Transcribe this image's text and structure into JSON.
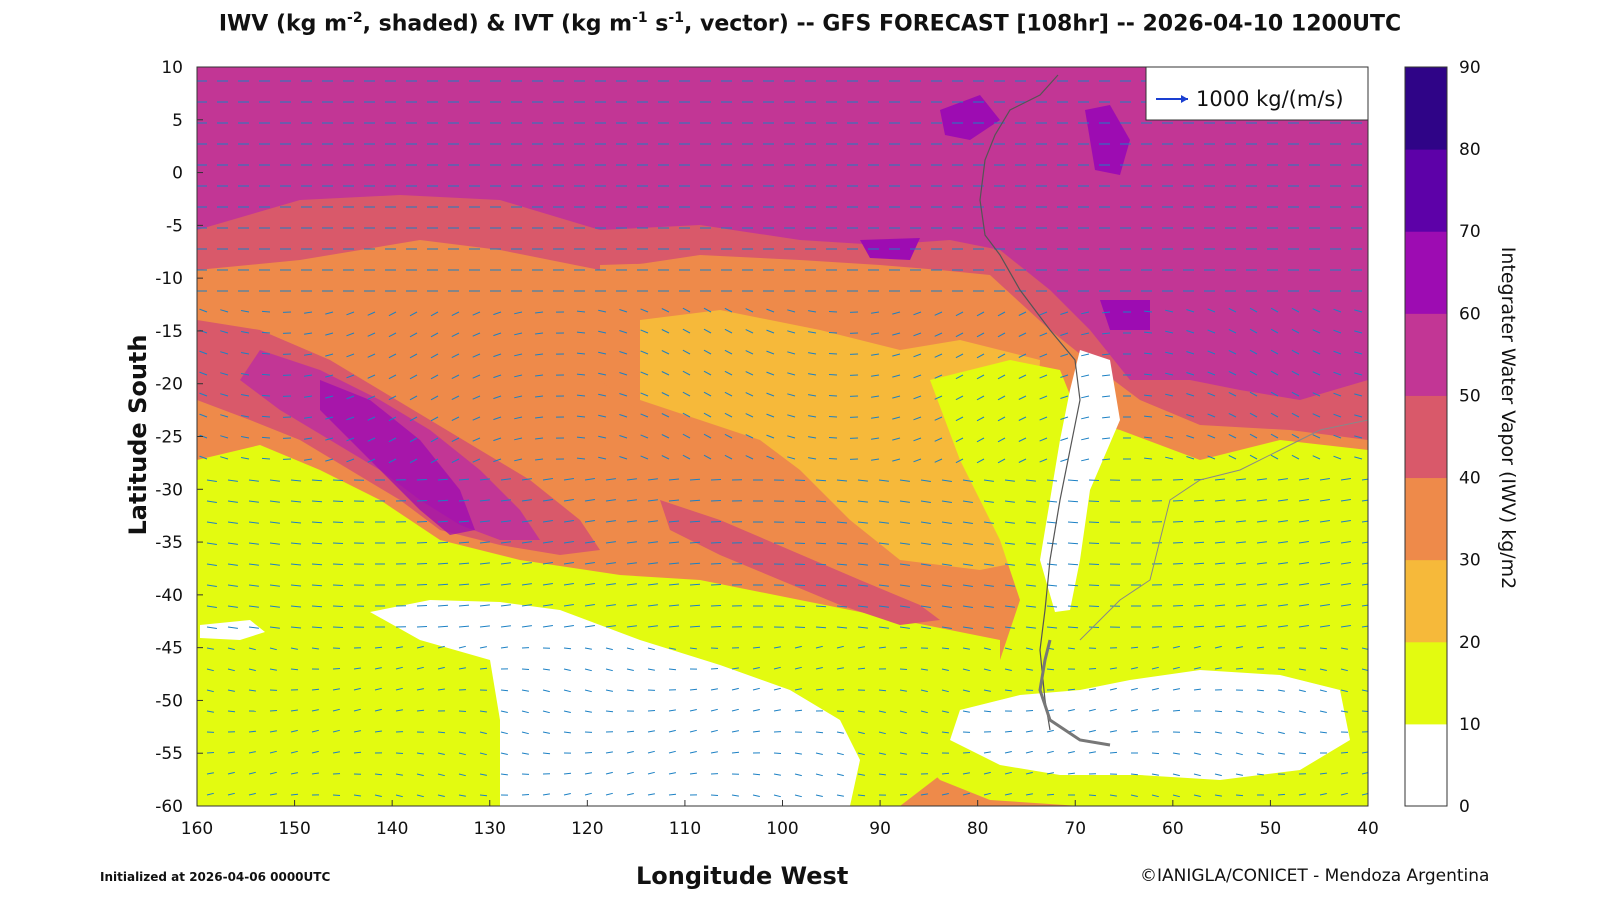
{
  "header": {
    "title_part1": "IWV (kg m",
    "title_sup1": "-2",
    "title_part2": ", shaded) & IVT (kg m",
    "title_sup2": "-1",
    "title_part3": " s",
    "title_sup3": "-1",
    "title_part4": ", vector) -- GFS FORECAST [108hr] -- 2026-04-10 1200UTC"
  },
  "axes": {
    "xlabel": "Longitude West",
    "ylabel": "Latitude South",
    "x_ticks": [
      "160",
      "150",
      "140",
      "130",
      "120",
      "110",
      "100",
      "90",
      "80",
      "70",
      "60",
      "50",
      "40"
    ],
    "y_ticks": [
      "10",
      "5",
      "0",
      "-5",
      "-10",
      "-15",
      "-20",
      "-25",
      "-30",
      "-35",
      "-40",
      "-45",
      "-50",
      "-55",
      "-60"
    ],
    "x_range": [
      160,
      40
    ],
    "y_range": [
      -60,
      10
    ]
  },
  "legend": {
    "vector_label": "1000 kg/(m/s)",
    "vector_color": "#1a3fd1"
  },
  "colorbar": {
    "label": "Integrater Water Vapor (IWV) kg/m2",
    "ticks": [
      "0",
      "10",
      "20",
      "30",
      "40",
      "50",
      "60",
      "70",
      "80",
      "90"
    ],
    "colors": [
      "#ffffff",
      "#e3fb10",
      "#f6b93a",
      "#ee8a4a",
      "#d9596a",
      "#c23695",
      "#9d0cb2",
      "#5d01a8",
      "#2f0487"
    ]
  },
  "vector_color": "#1b80c4",
  "footer": {
    "initialized": "Initialized at 2026-04-06 0000UTC",
    "credit": "©IANIGLA/CONICET - Mendoza Argentina"
  }
}
